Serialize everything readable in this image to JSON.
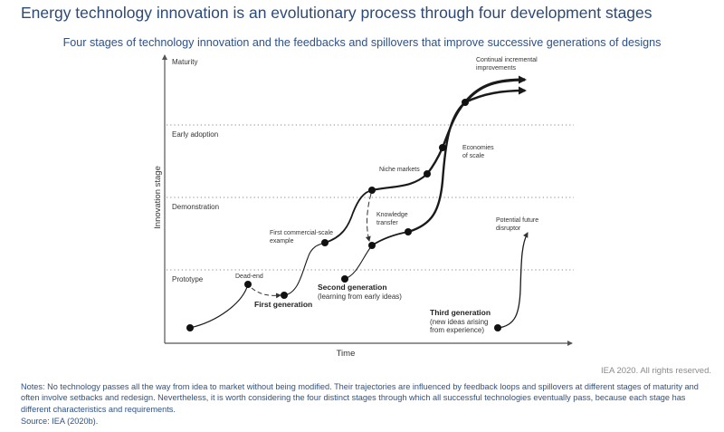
{
  "header": {
    "title": "Energy technology innovation is an evolutionary process through four development stages",
    "subtitle": "Four stages of technology innovation and the feedbacks and spillovers that improve successive generations of designs"
  },
  "diagram": {
    "y_axis_label": "Innovation stage",
    "x_axis_label": "Time",
    "stages": [
      "Maturity",
      "Early adoption",
      "Demonstration",
      "Prototype"
    ],
    "annotations": {
      "dead_end": "Dead-end",
      "first_generation": "First generation",
      "first_commercial_line1": "First commercial-scale",
      "first_commercial_line2": "example",
      "second_generation": "Second generation",
      "second_generation_sub": "(learning from early ideas)",
      "knowledge_line1": "Knowledge",
      "knowledge_line2": "transfer",
      "niche_markets": "Niche markets",
      "economies_line1": "Economies",
      "economies_line2": "of scale",
      "continual_line1": "Continual incremental",
      "continual_line2": "improvements",
      "potential_line1": "Potential future",
      "potential_line2": "disruptor",
      "third_generation": "Third generation",
      "third_generation_sub1": "(new ideas arising",
      "third_generation_sub2": "from experience)"
    },
    "colors": {
      "line": "#1a1a1a",
      "grid": "#888888",
      "axis": "#555555"
    }
  },
  "footer": {
    "copyright": "IEA 2020. All rights reserved.",
    "notes": "Notes: No technology passes all the way from idea to market without being modified. Their trajectories are influenced by feedback loops and spillovers at different stages of maturity and often involve setbacks and redesign. Nevertheless, it is worth considering the four distinct stages through which all successful technologies eventually pass, because each stage has different characteristics and requirements.",
    "source": "Source: IEA (2020b)."
  }
}
